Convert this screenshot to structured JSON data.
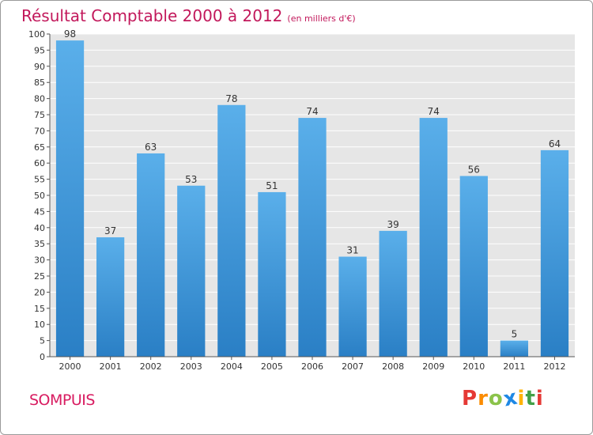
{
  "chart_data": {
    "type": "bar",
    "title": "Résultat Comptable 2000 à 2012",
    "subtitle": "(en milliers d'€)",
    "categories": [
      "2000",
      "2001",
      "2002",
      "2003",
      "2004",
      "2005",
      "2006",
      "2007",
      "2008",
      "2009",
      "2010",
      "2011",
      "2012"
    ],
    "values": [
      98,
      37,
      63,
      53,
      78,
      51,
      74,
      31,
      39,
      74,
      56,
      5,
      64
    ],
    "yticks": [
      0,
      5,
      10,
      15,
      20,
      25,
      30,
      35,
      40,
      45,
      50,
      55,
      60,
      65,
      70,
      75,
      80,
      85,
      90,
      95,
      100
    ],
    "ylim": [
      0,
      100
    ],
    "xlabel": "",
    "ylabel": "",
    "grid": true,
    "bar_color_top": "#5aafea",
    "bar_color_bottom": "#2a7fc5",
    "plot_background": "#e6e6e6"
  },
  "footer": {
    "commune": "SOMPUIS",
    "logo_letters": [
      "P",
      "r",
      "o",
      "x",
      "i",
      "t",
      "i"
    ],
    "logo_colors": [
      "#e53935",
      "#fb8c00",
      "#8bc34a",
      "#1e88e5",
      "#ffb300",
      "#43a047",
      "#e53935"
    ]
  }
}
